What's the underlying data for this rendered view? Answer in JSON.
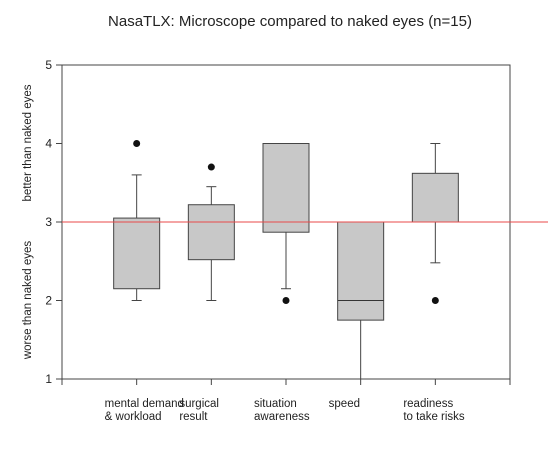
{
  "chart_data": {
    "type": "boxplot",
    "title": "NasaTLX: Microscope compared to naked eyes (n=15)",
    "ylabel_upper": "better than naked eyes",
    "ylabel_lower": "worse than naked eyes",
    "ylim": [
      1,
      5
    ],
    "yticks": [
      1,
      2,
      3,
      4,
      5
    ],
    "reference_line": {
      "y": 3,
      "color": "#e84a4a"
    },
    "box_color": "#c8c8c8",
    "grid": false,
    "categories": [
      {
        "label_lines": [
          "mental demand",
          "& workload"
        ]
      },
      {
        "label_lines": [
          "surgical",
          "result"
        ]
      },
      {
        "label_lines": [
          "situation",
          "awareness"
        ]
      },
      {
        "label_lines": [
          "speed"
        ]
      },
      {
        "label_lines": [
          "readiness",
          "to take risks"
        ]
      }
    ],
    "boxes": [
      {
        "whisker_low": 2.0,
        "q1": 2.15,
        "median": 3.0,
        "q3": 3.05,
        "whisker_high": 3.6,
        "outliers": [
          4.0
        ]
      },
      {
        "whisker_low": 2.0,
        "q1": 2.52,
        "median": 3.0,
        "q3": 3.22,
        "whisker_high": 3.45,
        "outliers": [
          3.7
        ]
      },
      {
        "whisker_low": 2.15,
        "q1": 2.87,
        "median": 3.0,
        "q3": 4.0,
        "whisker_high": 4.0,
        "outliers": [
          2.0
        ]
      },
      {
        "whisker_low": 1.0,
        "q1": 1.75,
        "median": 2.0,
        "q3": 3.0,
        "whisker_high": 3.0,
        "outliers": []
      },
      {
        "whisker_low": 2.48,
        "q1": 3.0,
        "median": 3.0,
        "q3": 3.62,
        "whisker_high": 4.0,
        "outliers": [
          2.0
        ]
      }
    ]
  }
}
